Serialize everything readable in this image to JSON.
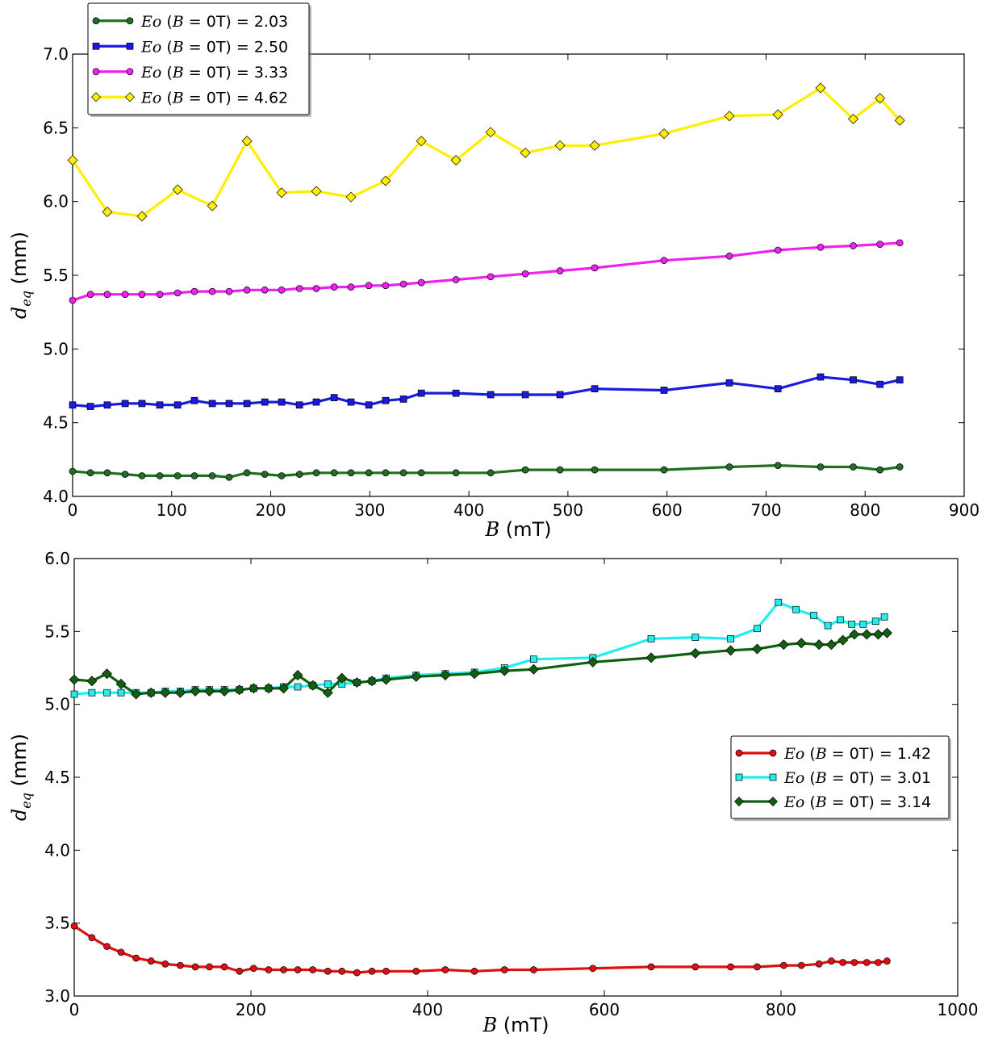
{
  "chart_data": [
    {
      "type": "line",
      "xlabel_var": "B",
      "xlabel_unit": "(mT)",
      "ylabel_var": "d",
      "ylabel_sub": "eq",
      "ylabel_unit": "(mm)",
      "xlim": [
        0,
        900
      ],
      "ylim": [
        4.0,
        7.0
      ],
      "xticks": [
        0,
        100,
        200,
        300,
        400,
        500,
        600,
        700,
        800,
        900
      ],
      "yticks": [
        4.0,
        4.5,
        5.0,
        5.5,
        6.0,
        6.5,
        7.0
      ],
      "ytick_labels": [
        "4.0",
        "4.5",
        "5.0",
        "5.5",
        "6.0",
        "6.5",
        "7.0"
      ],
      "grid": false,
      "legend_position": "top-left",
      "series": [
        {
          "name": "Eo (B = 0T) = 2.03",
          "legend_var": "Eo",
          "legend_cond": "(B = 0T)",
          "legend_value": "= 2.03",
          "color": "#207020",
          "marker": "circle",
          "x": [
            0,
            18,
            35,
            53,
            70,
            88,
            106,
            123,
            141,
            158,
            176,
            194,
            211,
            229,
            246,
            264,
            281,
            299,
            316,
            334,
            352,
            387,
            422,
            457,
            492,
            527,
            597,
            663,
            712,
            755,
            788,
            815,
            835
          ],
          "y": [
            4.17,
            4.16,
            4.16,
            4.15,
            4.14,
            4.14,
            4.14,
            4.14,
            4.14,
            4.13,
            4.16,
            4.15,
            4.14,
            4.15,
            4.16,
            4.16,
            4.16,
            4.16,
            4.16,
            4.16,
            4.16,
            4.16,
            4.16,
            4.18,
            4.18,
            4.18,
            4.18,
            4.2,
            4.21,
            4.2,
            4.2,
            4.18,
            4.2
          ]
        },
        {
          "name": "Eo (B = 0T) = 2.50",
          "legend_var": "Eo",
          "legend_cond": "(B = 0T)",
          "legend_value": "= 2.50",
          "color": "#1a1ae0",
          "marker": "square",
          "x": [
            0,
            18,
            35,
            53,
            70,
            88,
            106,
            123,
            141,
            158,
            176,
            194,
            211,
            229,
            246,
            264,
            281,
            299,
            316,
            334,
            352,
            387,
            422,
            457,
            492,
            527,
            597,
            663,
            712,
            755,
            788,
            815,
            835
          ],
          "y": [
            4.62,
            4.61,
            4.62,
            4.63,
            4.63,
            4.62,
            4.62,
            4.65,
            4.63,
            4.63,
            4.63,
            4.64,
            4.64,
            4.62,
            4.64,
            4.67,
            4.64,
            4.62,
            4.65,
            4.66,
            4.7,
            4.7,
            4.69,
            4.69,
            4.69,
            4.73,
            4.72,
            4.77,
            4.73,
            4.81,
            4.79,
            4.76,
            4.79
          ]
        },
        {
          "name": "Eo (B = 0T) = 3.33",
          "legend_var": "Eo",
          "legend_cond": "(B = 0T)",
          "legend_value": "= 3.33",
          "color": "#ee22ee",
          "marker": "circle",
          "x": [
            0,
            18,
            35,
            53,
            70,
            88,
            106,
            123,
            141,
            158,
            176,
            194,
            211,
            229,
            246,
            264,
            281,
            299,
            316,
            334,
            352,
            387,
            422,
            457,
            492,
            527,
            597,
            663,
            712,
            755,
            788,
            815,
            835
          ],
          "y": [
            5.33,
            5.37,
            5.37,
            5.37,
            5.37,
            5.37,
            5.38,
            5.39,
            5.39,
            5.39,
            5.4,
            5.4,
            5.4,
            5.41,
            5.41,
            5.42,
            5.42,
            5.43,
            5.43,
            5.44,
            5.45,
            5.47,
            5.49,
            5.51,
            5.53,
            5.55,
            5.6,
            5.63,
            5.67,
            5.69,
            5.7,
            5.71,
            5.72
          ]
        },
        {
          "name": "Eo (B = 0T) = 4.62",
          "legend_var": "Eo",
          "legend_cond": "(B = 0T)",
          "legend_value": "= 4.62",
          "color": "#ffee00",
          "marker": "diamond",
          "x": [
            0,
            35,
            70,
            106,
            141,
            176,
            211,
            246,
            281,
            316,
            352,
            387,
            422,
            457,
            492,
            527,
            597,
            663,
            712,
            755,
            788,
            815,
            835
          ],
          "y": [
            6.28,
            5.93,
            5.9,
            6.08,
            5.97,
            6.41,
            6.06,
            6.07,
            6.03,
            6.14,
            6.41,
            6.28,
            6.47,
            6.33,
            6.38,
            6.38,
            6.46,
            6.58,
            6.59,
            6.77,
            6.56,
            6.7,
            6.55
          ]
        }
      ]
    },
    {
      "type": "line",
      "xlabel_var": "B",
      "xlabel_unit": "(mT)",
      "ylabel_var": "d",
      "ylabel_sub": "eq",
      "ylabel_unit": "(mm)",
      "xlim": [
        0,
        1000
      ],
      "ylim": [
        3.0,
        6.0
      ],
      "xticks": [
        0,
        200,
        400,
        600,
        800,
        1000
      ],
      "yticks": [
        3.0,
        3.5,
        4.0,
        4.5,
        5.0,
        5.5,
        6.0
      ],
      "ytick_labels": [
        "3.0",
        "3.5",
        "4.0",
        "4.5",
        "5.0",
        "5.5",
        "6.0"
      ],
      "grid": false,
      "legend_position": "center-right",
      "series": [
        {
          "name": "Eo (B = 0T) = 1.42",
          "legend_var": "Eo",
          "legend_cond": "(B = 0T)",
          "legend_value": "= 1.42",
          "color": "#e01010",
          "marker": "circle",
          "x": [
            0,
            20,
            37,
            53,
            70,
            87,
            103,
            120,
            137,
            153,
            170,
            187,
            203,
            220,
            237,
            253,
            270,
            287,
            303,
            320,
            337,
            353,
            387,
            420,
            453,
            487,
            520,
            587,
            653,
            703,
            743,
            773,
            803,
            823,
            843,
            857,
            870,
            883,
            897,
            910,
            920
          ],
          "y": [
            3.48,
            3.4,
            3.34,
            3.3,
            3.26,
            3.24,
            3.22,
            3.21,
            3.2,
            3.2,
            3.2,
            3.17,
            3.19,
            3.18,
            3.18,
            3.18,
            3.18,
            3.17,
            3.17,
            3.16,
            3.17,
            3.17,
            3.17,
            3.18,
            3.17,
            3.18,
            3.18,
            3.19,
            3.2,
            3.2,
            3.2,
            3.2,
            3.21,
            3.21,
            3.22,
            3.24,
            3.23,
            3.23,
            3.23,
            3.23,
            3.24
          ]
        },
        {
          "name": "Eo (B = 0T) = 3.01",
          "legend_var": "Eo",
          "legend_cond": "(B = 0T)",
          "legend_value": "= 3.01",
          "color": "#22eeee",
          "marker": "square",
          "x": [
            0,
            20,
            37,
            53,
            70,
            87,
            103,
            120,
            137,
            153,
            170,
            187,
            203,
            220,
            237,
            253,
            270,
            287,
            303,
            320,
            337,
            353,
            387,
            420,
            453,
            487,
            520,
            587,
            653,
            703,
            743,
            773,
            797,
            817,
            837,
            853,
            867,
            880,
            893,
            907,
            917
          ],
          "y": [
            5.07,
            5.08,
            5.08,
            5.08,
            5.08,
            5.08,
            5.09,
            5.09,
            5.1,
            5.1,
            5.1,
            5.1,
            5.11,
            5.11,
            5.12,
            5.12,
            5.13,
            5.14,
            5.14,
            5.15,
            5.16,
            5.18,
            5.2,
            5.21,
            5.22,
            5.25,
            5.31,
            5.32,
            5.45,
            5.46,
            5.45,
            5.52,
            5.7,
            5.65,
            5.61,
            5.54,
            5.58,
            5.55,
            5.55,
            5.57,
            5.6
          ]
        },
        {
          "name": "Eo (B = 0T) = 3.14",
          "legend_var": "Eo",
          "legend_cond": "(B = 0T)",
          "legend_value": "= 3.14",
          "color": "#106010",
          "marker": "diamond",
          "x": [
            0,
            20,
            37,
            53,
            70,
            87,
            103,
            120,
            137,
            153,
            170,
            187,
            203,
            220,
            237,
            253,
            270,
            287,
            303,
            320,
            337,
            353,
            387,
            420,
            453,
            487,
            520,
            587,
            653,
            703,
            743,
            773,
            803,
            823,
            843,
            857,
            870,
            883,
            897,
            910,
            920
          ],
          "y": [
            5.17,
            5.16,
            5.21,
            5.14,
            5.07,
            5.08,
            5.08,
            5.08,
            5.09,
            5.09,
            5.09,
            5.1,
            5.11,
            5.11,
            5.11,
            5.2,
            5.13,
            5.08,
            5.18,
            5.15,
            5.16,
            5.17,
            5.19,
            5.2,
            5.21,
            5.23,
            5.24,
            5.29,
            5.32,
            5.35,
            5.37,
            5.38,
            5.41,
            5.42,
            5.41,
            5.41,
            5.44,
            5.48,
            5.48,
            5.48,
            5.49
          ]
        }
      ]
    }
  ]
}
